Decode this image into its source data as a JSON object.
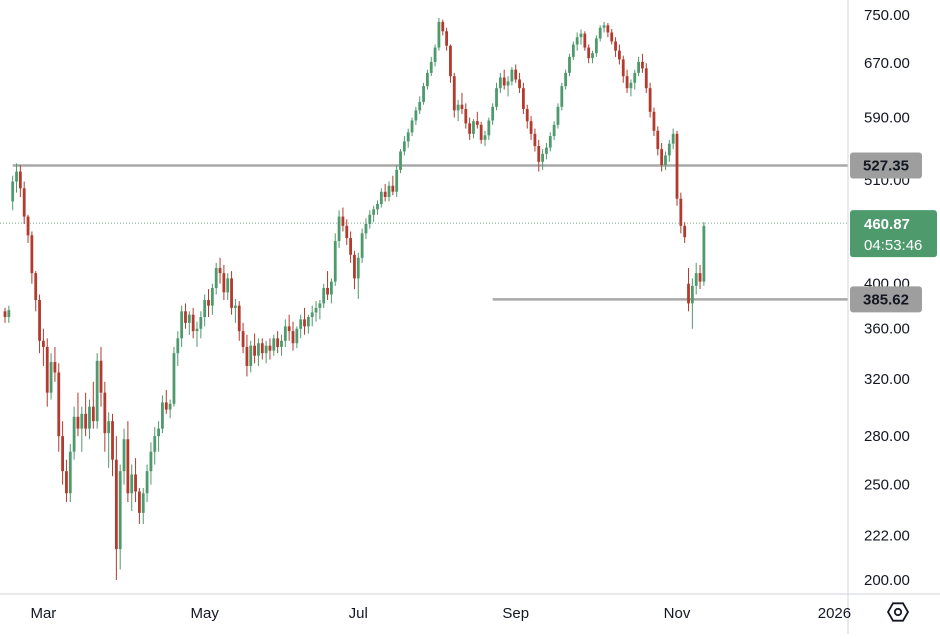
{
  "chart_data": {
    "type": "candlestick",
    "y_scale": "log",
    "ylim": [
      190,
      770
    ],
    "colors": {
      "up": "#4e9a6d",
      "down": "#b23a2e",
      "level_line": "#a8a8a8",
      "level_badge": "#9e9e9e",
      "last_price_badge": "#4e9a6d",
      "axis_border": "#d1d4dc"
    },
    "y_ticks": [
      {
        "value": 750,
        "label": "750.00"
      },
      {
        "value": 670,
        "label": "670.00"
      },
      {
        "value": 590,
        "label": "590.00"
      },
      {
        "value": 510,
        "label": "510.00"
      },
      {
        "value": 400,
        "label": "400.00"
      },
      {
        "value": 360,
        "label": "360.00"
      },
      {
        "value": 320,
        "label": "320.00"
      },
      {
        "value": 280,
        "label": "280.00"
      },
      {
        "value": 250,
        "label": "250.00"
      },
      {
        "value": 222,
        "label": "222.00"
      },
      {
        "value": 200,
        "label": "200.00"
      }
    ],
    "x_ticks": [
      {
        "index": 10,
        "label": "Mar"
      },
      {
        "index": 52,
        "label": "May"
      },
      {
        "index": 92,
        "label": "Jul"
      },
      {
        "index": 133,
        "label": "Sep"
      },
      {
        "index": 175,
        "label": "Nov"
      },
      {
        "index": 216,
        "label": "2026"
      }
    ],
    "levels": [
      {
        "value": 527.35,
        "label": "527.35",
        "from_index": 2
      },
      {
        "value": 385.62,
        "label": "385.62",
        "from_index": 127
      }
    ],
    "last_price": {
      "value": 460.87,
      "label": "460.87",
      "countdown": "04:53:46"
    },
    "settings_icon": "gear-hexagon-icon",
    "candles": [
      [
        375,
        378,
        365,
        370
      ],
      [
        370,
        380,
        365,
        376
      ],
      [
        485,
        515,
        475,
        508
      ],
      [
        508,
        530,
        495,
        520
      ],
      [
        520,
        528,
        490,
        500
      ],
      [
        500,
        508,
        460,
        468
      ],
      [
        468,
        470,
        440,
        448
      ],
      [
        448,
        452,
        400,
        410
      ],
      [
        410,
        412,
        375,
        385
      ],
      [
        385,
        390,
        340,
        350
      ],
      [
        350,
        360,
        330,
        345
      ],
      [
        345,
        352,
        300,
        310
      ],
      [
        310,
        340,
        305,
        333
      ],
      [
        333,
        345,
        318,
        325
      ],
      [
        325,
        332,
        270,
        280
      ],
      [
        280,
        290,
        250,
        258
      ],
      [
        258,
        265,
        240,
        245
      ],
      [
        245,
        275,
        240,
        270
      ],
      [
        270,
        300,
        265,
        293
      ],
      [
        293,
        310,
        280,
        285
      ],
      [
        285,
        300,
        270,
        295
      ],
      [
        295,
        310,
        280,
        285
      ],
      [
        285,
        305,
        278,
        300
      ],
      [
        300,
        318,
        285,
        290
      ],
      [
        290,
        340,
        285,
        334
      ],
      [
        334,
        345,
        300,
        310
      ],
      [
        310,
        318,
        270,
        282
      ],
      [
        282,
        296,
        260,
        290
      ],
      [
        290,
        295,
        255,
        265
      ],
      [
        265,
        280,
        200,
        215
      ],
      [
        215,
        262,
        205,
        258
      ],
      [
        258,
        285,
        250,
        278
      ],
      [
        278,
        290,
        240,
        245
      ],
      [
        245,
        262,
        235,
        256
      ],
      [
        256,
        266,
        240,
        246
      ],
      [
        246,
        248,
        228,
        234
      ],
      [
        234,
        248,
        228,
        245
      ],
      [
        245,
        262,
        240,
        258
      ],
      [
        258,
        276,
        250,
        270
      ],
      [
        270,
        286,
        262,
        280
      ],
      [
        280,
        290,
        270,
        285
      ],
      [
        285,
        308,
        282,
        303
      ],
      [
        303,
        312,
        295,
        298
      ],
      [
        298,
        305,
        292,
        302
      ],
      [
        302,
        345,
        300,
        340
      ],
      [
        340,
        358,
        330,
        352
      ],
      [
        352,
        380,
        345,
        375
      ],
      [
        375,
        382,
        360,
        365
      ],
      [
        365,
        375,
        355,
        372
      ],
      [
        372,
        378,
        352,
        358
      ],
      [
        358,
        366,
        345,
        360
      ],
      [
        360,
        375,
        352,
        370
      ],
      [
        370,
        390,
        362,
        385
      ],
      [
        385,
        395,
        370,
        380
      ],
      [
        380,
        400,
        372,
        396
      ],
      [
        396,
        420,
        390,
        415
      ],
      [
        415,
        425,
        400,
        410
      ],
      [
        410,
        418,
        385,
        392
      ],
      [
        392,
        410,
        385,
        405
      ],
      [
        405,
        412,
        372,
        378
      ],
      [
        378,
        386,
        365,
        380
      ],
      [
        380,
        384,
        350,
        358
      ],
      [
        358,
        365,
        340,
        345
      ],
      [
        345,
        355,
        322,
        330
      ],
      [
        330,
        350,
        325,
        346
      ],
      [
        346,
        356,
        332,
        338
      ],
      [
        338,
        352,
        330,
        348
      ],
      [
        348,
        352,
        335,
        340
      ],
      [
        340,
        350,
        332,
        346
      ],
      [
        346,
        352,
        335,
        342
      ],
      [
        342,
        355,
        338,
        352
      ],
      [
        352,
        358,
        340,
        345
      ],
      [
        345,
        355,
        338,
        350
      ],
      [
        350,
        368,
        345,
        362
      ],
      [
        362,
        372,
        350,
        358
      ],
      [
        358,
        366,
        342,
        348
      ],
      [
        348,
        362,
        344,
        360
      ],
      [
        360,
        372,
        352,
        368
      ],
      [
        368,
        378,
        355,
        362
      ],
      [
        362,
        372,
        356,
        370
      ],
      [
        370,
        380,
        362,
        374
      ],
      [
        374,
        384,
        366,
        378
      ],
      [
        378,
        385,
        368,
        382
      ],
      [
        382,
        400,
        378,
        396
      ],
      [
        396,
        412,
        385,
        390
      ],
      [
        390,
        405,
        382,
        402
      ],
      [
        402,
        450,
        398,
        442
      ],
      [
        442,
        475,
        435,
        468
      ],
      [
        468,
        478,
        452,
        458
      ],
      [
        458,
        465,
        438,
        445
      ],
      [
        445,
        452,
        420,
        428
      ],
      [
        428,
        432,
        395,
        405
      ],
      [
        405,
        430,
        386,
        425
      ],
      [
        425,
        455,
        420,
        450
      ],
      [
        450,
        466,
        444,
        460
      ],
      [
        460,
        475,
        455,
        470
      ],
      [
        470,
        480,
        462,
        476
      ],
      [
        476,
        486,
        470,
        482
      ],
      [
        482,
        500,
        478,
        496
      ],
      [
        496,
        505,
        485,
        490
      ],
      [
        490,
        508,
        485,
        503
      ],
      [
        503,
        515,
        492,
        496
      ],
      [
        496,
        528,
        490,
        522
      ],
      [
        522,
        548,
        518,
        545
      ],
      [
        545,
        565,
        540,
        558
      ],
      [
        558,
        575,
        550,
        570
      ],
      [
        570,
        590,
        565,
        586
      ],
      [
        586,
        605,
        580,
        600
      ],
      [
        600,
        620,
        595,
        612
      ],
      [
        612,
        640,
        608,
        635
      ],
      [
        635,
        660,
        630,
        655
      ],
      [
        655,
        680,
        650,
        672
      ],
      [
        672,
        700,
        665,
        695
      ],
      [
        695,
        745,
        690,
        738
      ],
      [
        738,
        742,
        715,
        722
      ],
      [
        722,
        728,
        690,
        698
      ],
      [
        698,
        700,
        640,
        650
      ],
      [
        650,
        655,
        590,
        600
      ],
      [
        600,
        615,
        585,
        608
      ],
      [
        608,
        625,
        595,
        602
      ],
      [
        602,
        610,
        575,
        582
      ],
      [
        582,
        590,
        560,
        568
      ],
      [
        568,
        588,
        562,
        585
      ],
      [
        585,
        598,
        575,
        580
      ],
      [
        580,
        584,
        555,
        560
      ],
      [
        560,
        572,
        552,
        566
      ],
      [
        566,
        590,
        560,
        586
      ],
      [
        586,
        610,
        580,
        605
      ],
      [
        605,
        640,
        600,
        632
      ],
      [
        632,
        655,
        625,
        648
      ],
      [
        648,
        660,
        630,
        636
      ],
      [
        636,
        650,
        620,
        642
      ],
      [
        642,
        664,
        636,
        660
      ],
      [
        660,
        668,
        640,
        645
      ],
      [
        645,
        655,
        625,
        632
      ],
      [
        632,
        640,
        595,
        602
      ],
      [
        602,
        608,
        575,
        585
      ],
      [
        585,
        592,
        560,
        568
      ],
      [
        568,
        575,
        545,
        552
      ],
      [
        552,
        560,
        520,
        532
      ],
      [
        532,
        548,
        522,
        542
      ],
      [
        542,
        556,
        535,
        550
      ],
      [
        550,
        570,
        545,
        565
      ],
      [
        565,
        585,
        560,
        580
      ],
      [
        580,
        610,
        575,
        605
      ],
      [
        605,
        640,
        600,
        635
      ],
      [
        635,
        660,
        630,
        655
      ],
      [
        655,
        685,
        650,
        680
      ],
      [
        680,
        705,
        675,
        700
      ],
      [
        700,
        720,
        690,
        712
      ],
      [
        712,
        725,
        700,
        718
      ],
      [
        718,
        722,
        690,
        695
      ],
      [
        695,
        700,
        670,
        678
      ],
      [
        678,
        690,
        670,
        686
      ],
      [
        686,
        715,
        680,
        710
      ],
      [
        710,
        732,
        705,
        728
      ],
      [
        728,
        738,
        720,
        732
      ],
      [
        732,
        736,
        712,
        720
      ],
      [
        720,
        726,
        700,
        705
      ],
      [
        705,
        712,
        680,
        690
      ],
      [
        690,
        700,
        668,
        676
      ],
      [
        676,
        682,
        640,
        650
      ],
      [
        650,
        660,
        625,
        632
      ],
      [
        632,
        645,
        620,
        640
      ],
      [
        640,
        660,
        630,
        655
      ],
      [
        655,
        680,
        650,
        672
      ],
      [
        672,
        685,
        655,
        662
      ],
      [
        662,
        670,
        625,
        632
      ],
      [
        632,
        640,
        590,
        598
      ],
      [
        598,
        604,
        565,
        572
      ],
      [
        572,
        578,
        540,
        548
      ],
      [
        548,
        556,
        520,
        528
      ],
      [
        528,
        545,
        522,
        540
      ],
      [
        540,
        560,
        532,
        555
      ],
      [
        555,
        575,
        548,
        568
      ],
      [
        568,
        572,
        480,
        488
      ],
      [
        488,
        495,
        450,
        458
      ],
      [
        458,
        462,
        440,
        446
      ],
      [
        400,
        415,
        375,
        382
      ],
      [
        382,
        405,
        360,
        398
      ],
      [
        398,
        420,
        390,
        410
      ],
      [
        410,
        418,
        395,
        402
      ],
      [
        402,
        462,
        398,
        458
      ]
    ]
  }
}
